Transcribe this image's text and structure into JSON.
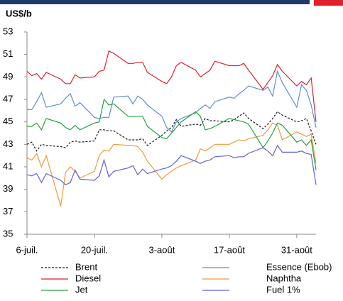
{
  "chart_data": {
    "type": "line",
    "y_label": "US$/b",
    "x": [
      0,
      1,
      2,
      3,
      4,
      7,
      8,
      9,
      10,
      11,
      14,
      15,
      16,
      17,
      18,
      21,
      22,
      23,
      24,
      25,
      28,
      29,
      30,
      31,
      32,
      35,
      36,
      37,
      38,
      39,
      42,
      43,
      44,
      45,
      46,
      49,
      50,
      51,
      52,
      53,
      56,
      57,
      58,
      59,
      60
    ],
    "xlim": [
      0,
      60
    ],
    "xticks": [
      {
        "value": 0,
        "label": "6-juil."
      },
      {
        "value": 14,
        "label": "20-juil."
      },
      {
        "value": 28,
        "label": "3-août"
      },
      {
        "value": 42,
        "label": "17-août"
      },
      {
        "value": 56,
        "label": "31-août"
      }
    ],
    "ylim": [
      35,
      53
    ],
    "yticks": [
      35,
      37,
      39,
      41,
      43,
      45,
      47,
      49,
      51,
      53
    ],
    "grid": false,
    "series": [
      {
        "name": "Brent",
        "color": "#1a1a2e",
        "dashed": true,
        "values": [
          43.0,
          43.2,
          42.4,
          43.0,
          42.9,
          42.8,
          42.7,
          43.2,
          43.3,
          43.2,
          43.3,
          44.3,
          44.3,
          44.2,
          44.2,
          43.4,
          43.4,
          43.4,
          43.5,
          42.9,
          43.8,
          44.2,
          44.5,
          45.2,
          44.6,
          44.8,
          44.7,
          45.3,
          45.1,
          45.1,
          45.0,
          45.2,
          45.5,
          45.8,
          45.3,
          44.4,
          44.8,
          45.3,
          45.9,
          45.6,
          45.0,
          45.1,
          45.3,
          44.2,
          43.0
        ]
      },
      {
        "name": "Essence (Ebob)",
        "color": "#5b8fcf",
        "dashed": false,
        "values": [
          46.1,
          46.1,
          46.8,
          47.6,
          46.3,
          46.6,
          47.1,
          47.5,
          46.4,
          46.7,
          45.4,
          45.3,
          45.4,
          45.4,
          47.2,
          47.3,
          46.6,
          47.3,
          47.0,
          46.5,
          45.5,
          44.5,
          44.1,
          45.0,
          45.3,
          45.8,
          46.2,
          46.5,
          46.2,
          46.8,
          47.2,
          47.1,
          47.5,
          47.8,
          48.2,
          47.8,
          48.1,
          47.3,
          49.5,
          48.5,
          46.3,
          48.3,
          47.8,
          46.5,
          44.5
        ]
      },
      {
        "name": "Diesel",
        "color": "#e0202a",
        "dashed": false,
        "values": [
          49.5,
          49.1,
          49.3,
          48.8,
          49.4,
          48.8,
          48.4,
          48.4,
          49.2,
          48.9,
          49.0,
          49.5,
          49.6,
          51.3,
          51.1,
          50.2,
          50.2,
          50.3,
          50.3,
          49.4,
          48.6,
          48.4,
          49.0,
          50.0,
          50.3,
          49.6,
          49.0,
          49.3,
          49.6,
          50.4,
          50.0,
          50.0,
          50.0,
          50.2,
          49.6,
          47.9,
          48.5,
          49.1,
          50.1,
          49.5,
          48.2,
          48.6,
          48.3,
          48.9,
          45.0
        ]
      },
      {
        "name": "Naphtha",
        "color": "#f29a38",
        "dashed": false,
        "values": [
          41.8,
          41.6,
          42.2,
          41.0,
          42.0,
          37.5,
          40.5,
          41.0,
          40.6,
          40.0,
          40.6,
          42.0,
          42.5,
          42.4,
          43.0,
          42.9,
          42.9,
          42.8,
          42.3,
          41.5,
          39.9,
          40.3,
          40.6,
          40.9,
          41.1,
          41.6,
          42.6,
          42.4,
          42.7,
          43.0,
          43.0,
          43.2,
          43.4,
          43.3,
          43.5,
          43.8,
          44.3,
          44.9,
          44.7,
          43.4,
          44.1,
          43.9,
          43.7,
          43.9,
          41.3
        ]
      },
      {
        "name": "Jet",
        "color": "#22a03c",
        "dashed": false,
        "values": [
          44.6,
          44.6,
          44.9,
          44.3,
          45.3,
          44.9,
          44.5,
          44.3,
          44.7,
          44.3,
          44.9,
          45.0,
          47.0,
          46.5,
          46.6,
          45.5,
          45.5,
          45.5,
          45.5,
          44.6,
          43.6,
          43.5,
          44.0,
          44.5,
          45.0,
          45.9,
          45.5,
          44.3,
          44.4,
          44.6,
          45.3,
          45.2,
          45.1,
          45.0,
          44.8,
          42.7,
          43.3,
          44.0,
          44.9,
          44.7,
          43.2,
          43.4,
          42.9,
          43.4,
          40.7
        ]
      },
      {
        "name": "Fuel 1%",
        "color": "#6060dc",
        "dashed": false,
        "values": [
          40.3,
          40.2,
          40.4,
          39.6,
          40.4,
          39.8,
          39.4,
          39.6,
          40.7,
          39.9,
          39.8,
          40.2,
          41.6,
          40.1,
          40.6,
          40.9,
          41.1,
          40.3,
          40.8,
          40.4,
          40.8,
          40.9,
          41.1,
          41.5,
          42.0,
          41.5,
          41.3,
          41.5,
          41.6,
          41.9,
          42.0,
          41.8,
          41.9,
          41.9,
          42.2,
          42.7,
          42.4,
          42.0,
          42.9,
          42.3,
          42.3,
          42.4,
          42.2,
          42.1,
          39.4
        ]
      }
    ]
  }
}
